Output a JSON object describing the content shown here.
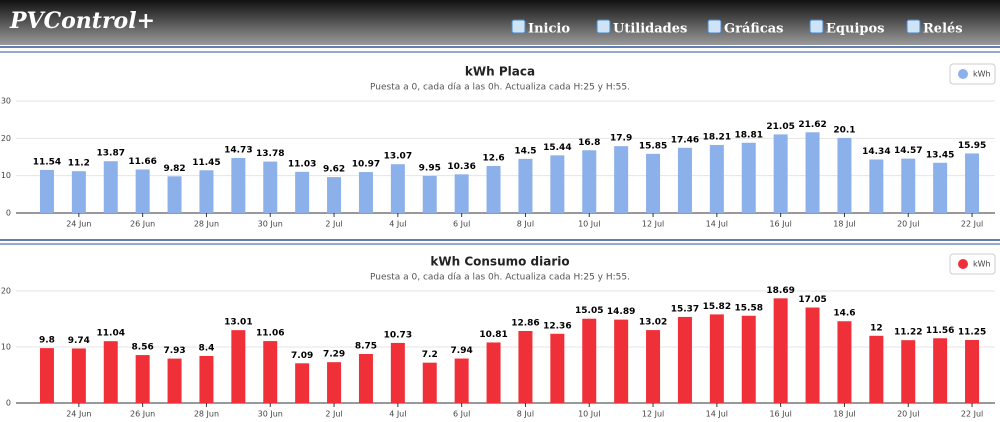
{
  "header": {
    "logo": "PVControl+",
    "nav": [
      "Inicio",
      "Utilidades",
      "Gráficas",
      "Equipos",
      "Relés"
    ]
  },
  "chart_data": [
    {
      "type": "bar",
      "title": "kWh Placa",
      "subtitle": "Puesta a 0, cada día a las 0h. Actualiza cada H:25 y H:55.",
      "categories": [
        null,
        "24 Jun",
        null,
        "26 Jun",
        null,
        "28 Jun",
        null,
        "30 Jun",
        null,
        "2 Jul",
        null,
        "4 Jul",
        null,
        "6 Jul",
        null,
        "8 Jul",
        null,
        "10 Jul",
        null,
        "12 Jul",
        null,
        "14 Jul",
        null,
        "16 Jul",
        null,
        "18 Jul",
        null,
        "20 Jul",
        null,
        "22 Jul"
      ],
      "series": [
        {
          "name": "kWh",
          "color": "#8cb0ea",
          "values": [
            11.54,
            11.2,
            13.87,
            11.66,
            9.82,
            11.45,
            14.73,
            13.78,
            11.03,
            9.62,
            10.97,
            13.07,
            9.95,
            10.36,
            12.6,
            14.5,
            15.44,
            16.8,
            17.9,
            15.85,
            17.46,
            18.21,
            18.81,
            21.05,
            21.62,
            20.1,
            14.34,
            14.57,
            13.45,
            15.95
          ]
        }
      ],
      "ylim": [
        0,
        30
      ],
      "yticks": [
        0,
        10,
        20,
        30
      ],
      "grid": true,
      "legend": "top-right"
    },
    {
      "type": "bar",
      "title": "kWh Consumo diario",
      "subtitle": "Puesta a 0, cada día a las 0h. Actualiza cada H:25 y H:55.",
      "categories": [
        null,
        "24 Jun",
        null,
        "26 Jun",
        null,
        "28 Jun",
        null,
        "30 Jun",
        null,
        "2 Jul",
        null,
        "4 Jul",
        null,
        "6 Jul",
        null,
        "8 Jul",
        null,
        "10 Jul",
        null,
        "12 Jul",
        null,
        "14 Jul",
        null,
        "16 Jul",
        null,
        "18 Jul",
        null,
        "20 Jul",
        null,
        "22 Jul"
      ],
      "series": [
        {
          "name": "kWh",
          "color": "#f03038",
          "values": [
            9.8,
            9.74,
            11.04,
            8.56,
            7.93,
            8.4,
            13.01,
            11.06,
            7.09,
            7.29,
            8.75,
            10.73,
            7.2,
            7.94,
            10.81,
            12.86,
            12.36,
            15.05,
            14.89,
            13.02,
            15.37,
            15.82,
            15.58,
            18.69,
            17.05,
            14.6,
            12,
            11.22,
            11.56,
            11.25
          ]
        }
      ],
      "ylim": [
        0,
        20
      ],
      "yticks": [
        0,
        10,
        20
      ],
      "grid": true,
      "legend": "top-right"
    }
  ]
}
